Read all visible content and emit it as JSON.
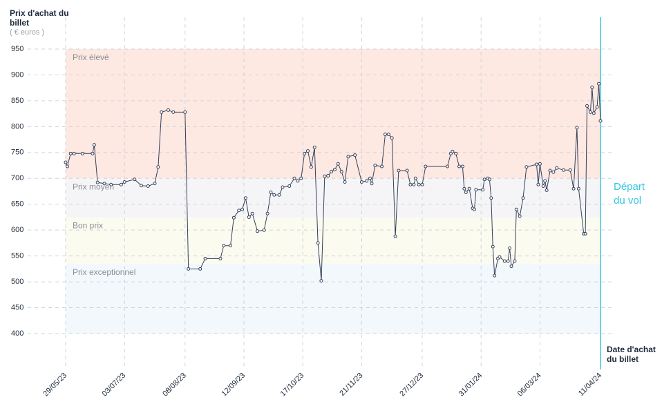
{
  "chart_data": {
    "type": "line",
    "y_axis_label": "Prix d'achat du billet",
    "y_axis_unit": "( € euros )",
    "x_axis_label": "Date d'achat du billet",
    "annotation": "Départ du vol",
    "ylim": [
      400,
      950
    ],
    "yticks": [
      400,
      450,
      500,
      550,
      600,
      650,
      700,
      750,
      800,
      850,
      900,
      950
    ],
    "xlim": [
      "29/05/23",
      "11/04/24"
    ],
    "xticks": [
      "29/05/23",
      "03/07/23",
      "08/08/23",
      "12/09/23",
      "17/10/23",
      "21/11/23",
      "27/12/23",
      "31/01/24",
      "06/03/24",
      "11/04/24"
    ],
    "bands": [
      {
        "name": "Prix élevé",
        "range": [
          700,
          950
        ],
        "color": "#fde8e2"
      },
      {
        "name": "Prix moyen",
        "range": [
          625,
          700
        ],
        "color": "#f5f5f7"
      },
      {
        "name": "Bon prix",
        "range": [
          535,
          625
        ],
        "color": "#fbfbf0"
      },
      {
        "name": "Prix exceptionnel",
        "range": [
          400,
          535
        ],
        "color": "#f2f8fc"
      }
    ],
    "grid": true,
    "series": [
      {
        "name": "Prix",
        "color": "#34405a",
        "x": [
          "29/05/23",
          "30/05/23",
          "01/06/23",
          "03/06/23",
          "08/06/23",
          "14/06/23",
          "15/06/23",
          "17/06/23",
          "21/06/23",
          "25/06/23",
          "01/07/23",
          "03/07/23",
          "09/07/23",
          "13/07/23",
          "17/07/23",
          "21/07/23",
          "23/07/23",
          "25/07/23",
          "29/07/23",
          "01/08/23",
          "08/08/23",
          "10/08/23",
          "17/08/23",
          "20/08/23",
          "29/08/23",
          "31/08/23",
          "04/09/23",
          "06/09/23",
          "09/09/23",
          "11/09/23",
          "13/09/23",
          "15/09/23",
          "17/09/23",
          "20/09/23",
          "24/09/23",
          "26/09/23",
          "28/09/23",
          "30/09/23",
          "03/10/23",
          "05/10/23",
          "09/10/23",
          "12/10/23",
          "14/10/23",
          "16/10/23",
          "18/10/23",
          "20/10/23",
          "22/10/23",
          "24/10/23",
          "26/10/23",
          "28/10/23",
          "30/10/23",
          "01/11/23",
          "03/11/23",
          "05/11/23",
          "07/11/23",
          "09/11/23",
          "11/11/23",
          "13/11/23",
          "17/11/23",
          "21/11/23",
          "24/11/23",
          "26/11/23",
          "27/11/23",
          "29/11/23",
          "03/12/23",
          "05/12/23",
          "07/12/23",
          "09/12/23",
          "11/12/23",
          "13/12/23",
          "18/12/23",
          "20/12/23",
          "22/12/23",
          "23/12/23",
          "25/12/23",
          "27/12/23",
          "29/12/23",
          "11/01/24",
          "13/01/24",
          "14/01/24",
          "16/01/24",
          "18/01/24",
          "20/01/24",
          "21/01/24",
          "22/01/24",
          "24/01/24",
          "26/01/24",
          "27/01/24",
          "28/01/24",
          "01/02/24",
          "02/02/24",
          "04/02/24",
          "05/02/24",
          "06/02/24",
          "07/02/24",
          "08/02/24",
          "10/02/24",
          "11/02/24",
          "14/02/24",
          "16/02/24",
          "17/02/24",
          "18/02/24",
          "20/02/24",
          "21/02/24",
          "23/02/24",
          "25/02/24",
          "27/02/24",
          "04/03/24",
          "05/03/24",
          "06/03/24",
          "08/03/24",
          "09/03/24",
          "10/03/24",
          "12/03/24",
          "14/03/24",
          "16/03/24",
          "20/03/24",
          "24/03/24",
          "26/03/24",
          "28/03/24",
          "29/03/24",
          "01/04/24",
          "02/04/24",
          "03/04/24",
          "05/04/24",
          "06/04/24",
          "07/04/24",
          "09/04/24",
          "10/04/24",
          "11/04/24"
        ],
        "values": [
          731,
          723,
          748,
          748,
          748,
          748,
          765,
          692,
          690,
          688,
          688,
          693,
          698,
          686,
          685,
          690,
          722,
          828,
          832,
          828,
          828,
          525,
          525,
          545,
          545,
          570,
          570,
          624,
          638,
          640,
          662,
          625,
          632,
          598,
          600,
          632,
          673,
          668,
          668,
          683,
          685,
          700,
          695,
          700,
          748,
          753,
          722,
          760,
          575,
          502,
          704,
          705,
          713,
          717,
          728,
          713,
          693,
          742,
          745,
          693,
          695,
          700,
          690,
          725,
          723,
          785,
          785,
          778,
          588,
          715,
          715,
          688,
          688,
          700,
          688,
          688,
          723,
          723,
          748,
          752,
          748,
          723,
          723,
          680,
          673,
          680,
          642,
          640,
          678,
          678,
          698,
          700,
          698,
          662,
          568,
          512,
          545,
          548,
          540,
          540,
          565,
          530,
          540,
          640,
          627,
          662,
          722,
          727,
          688,
          728,
          685,
          695,
          677,
          715,
          712,
          720,
          716,
          716,
          680,
          798,
          680,
          593,
          593,
          840,
          828,
          876,
          826,
          838,
          883,
          811
        ]
      }
    ]
  }
}
